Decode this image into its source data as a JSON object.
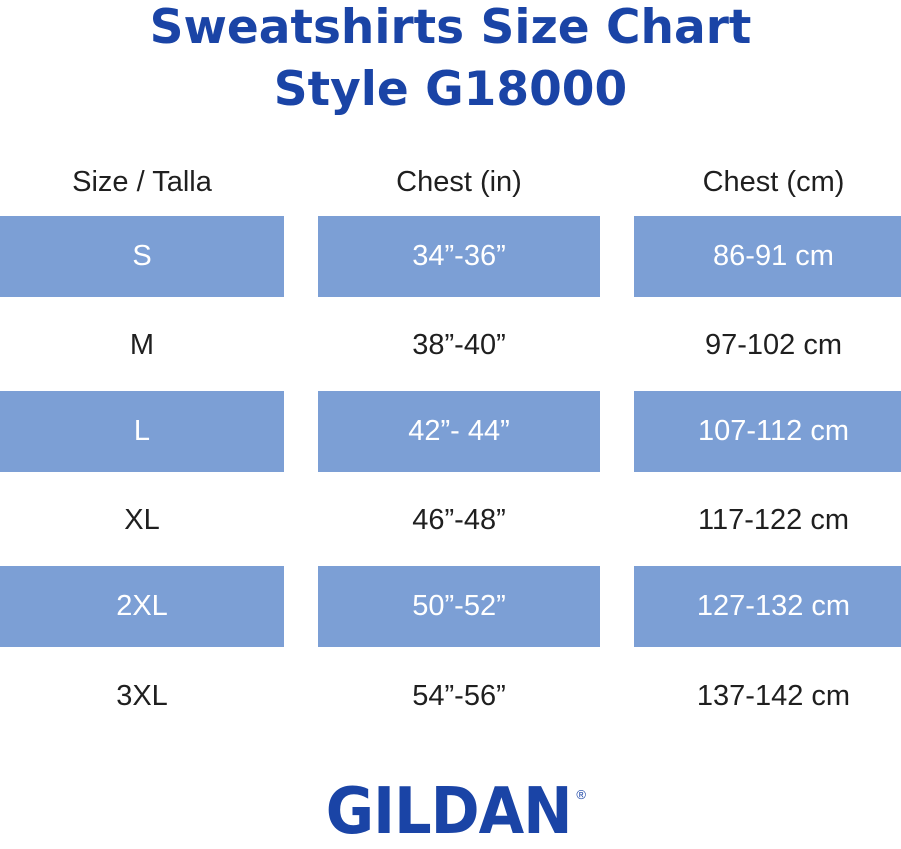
{
  "title": {
    "line1": "Sweatshirts Size Chart",
    "line2": "Style G18000"
  },
  "table": {
    "headers": [
      "Size / Talla",
      "Chest (in)",
      "Chest (cm)"
    ],
    "rows": [
      {
        "size": "S",
        "chest_in": "34”-36”",
        "chest_cm": "86-91 cm"
      },
      {
        "size": "M",
        "chest_in": "38”-40”",
        "chest_cm": "97-102 cm"
      },
      {
        "size": "L",
        "chest_in": "42”- 44”",
        "chest_cm": "107-112 cm"
      },
      {
        "size": "XL",
        "chest_in": "46”-48”",
        "chest_cm": "117-122 cm"
      },
      {
        "size": "2XL",
        "chest_in": "50”-52”",
        "chest_cm": "127-132 cm"
      },
      {
        "size": "3XL",
        "chest_in": "54”-56”",
        "chest_cm": "137-142 cm"
      }
    ]
  },
  "logo": {
    "text": "GILDAN",
    "registered_mark": "®"
  },
  "colors": {
    "brand_blue": "#1a44a6",
    "row_shade": "#7c9fd5",
    "text_dark": "#1f1f1f",
    "text_on_shade": "#ffffff"
  }
}
